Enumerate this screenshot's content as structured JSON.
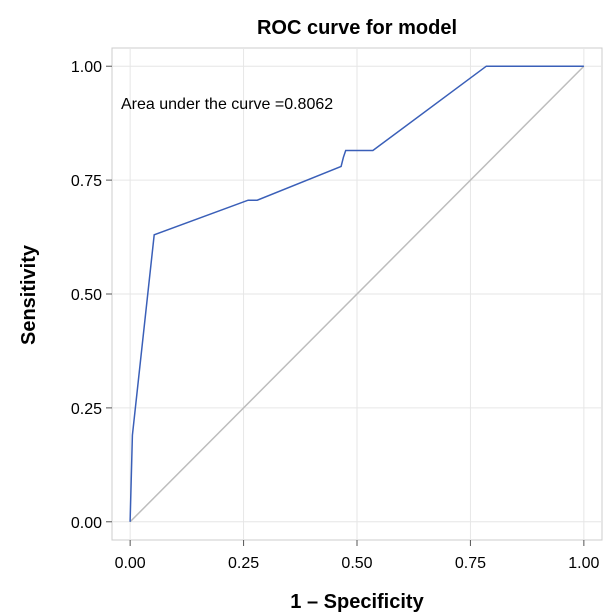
{
  "chart_data": {
    "type": "line",
    "title": "ROC curve for model",
    "xlabel": "1 – Specificity",
    "ylabel": "Sensitivity",
    "xlim": [
      -0.04,
      1.04
    ],
    "ylim": [
      -0.04,
      1.04
    ],
    "xticks": [
      0.0,
      0.25,
      0.5,
      0.75,
      1.0
    ],
    "yticks": [
      0.0,
      0.25,
      0.5,
      0.75,
      1.0
    ],
    "xtick_labels": [
      "0.00",
      "0.25",
      "0.50",
      "0.75",
      "1.00"
    ],
    "ytick_labels": [
      "0.00",
      "0.25",
      "0.50",
      "0.75",
      "1.00"
    ],
    "grid": true,
    "annotation": "Area under the curve =0.8062",
    "series": [
      {
        "color": "#3a5fb8",
        "x": [
          0.0,
          0.005,
          0.053,
          0.26,
          0.28,
          0.465,
          0.47,
          0.475,
          0.535,
          0.785,
          1.0
        ],
        "y": [
          0.0,
          0.19,
          0.63,
          0.706,
          0.706,
          0.78,
          0.8,
          0.815,
          0.815,
          1.0,
          1.0
        ]
      }
    ],
    "reference_line": {
      "color": "#bdbdbd",
      "x": [
        0.0,
        1.0
      ],
      "y": [
        0.0,
        1.0
      ]
    }
  }
}
